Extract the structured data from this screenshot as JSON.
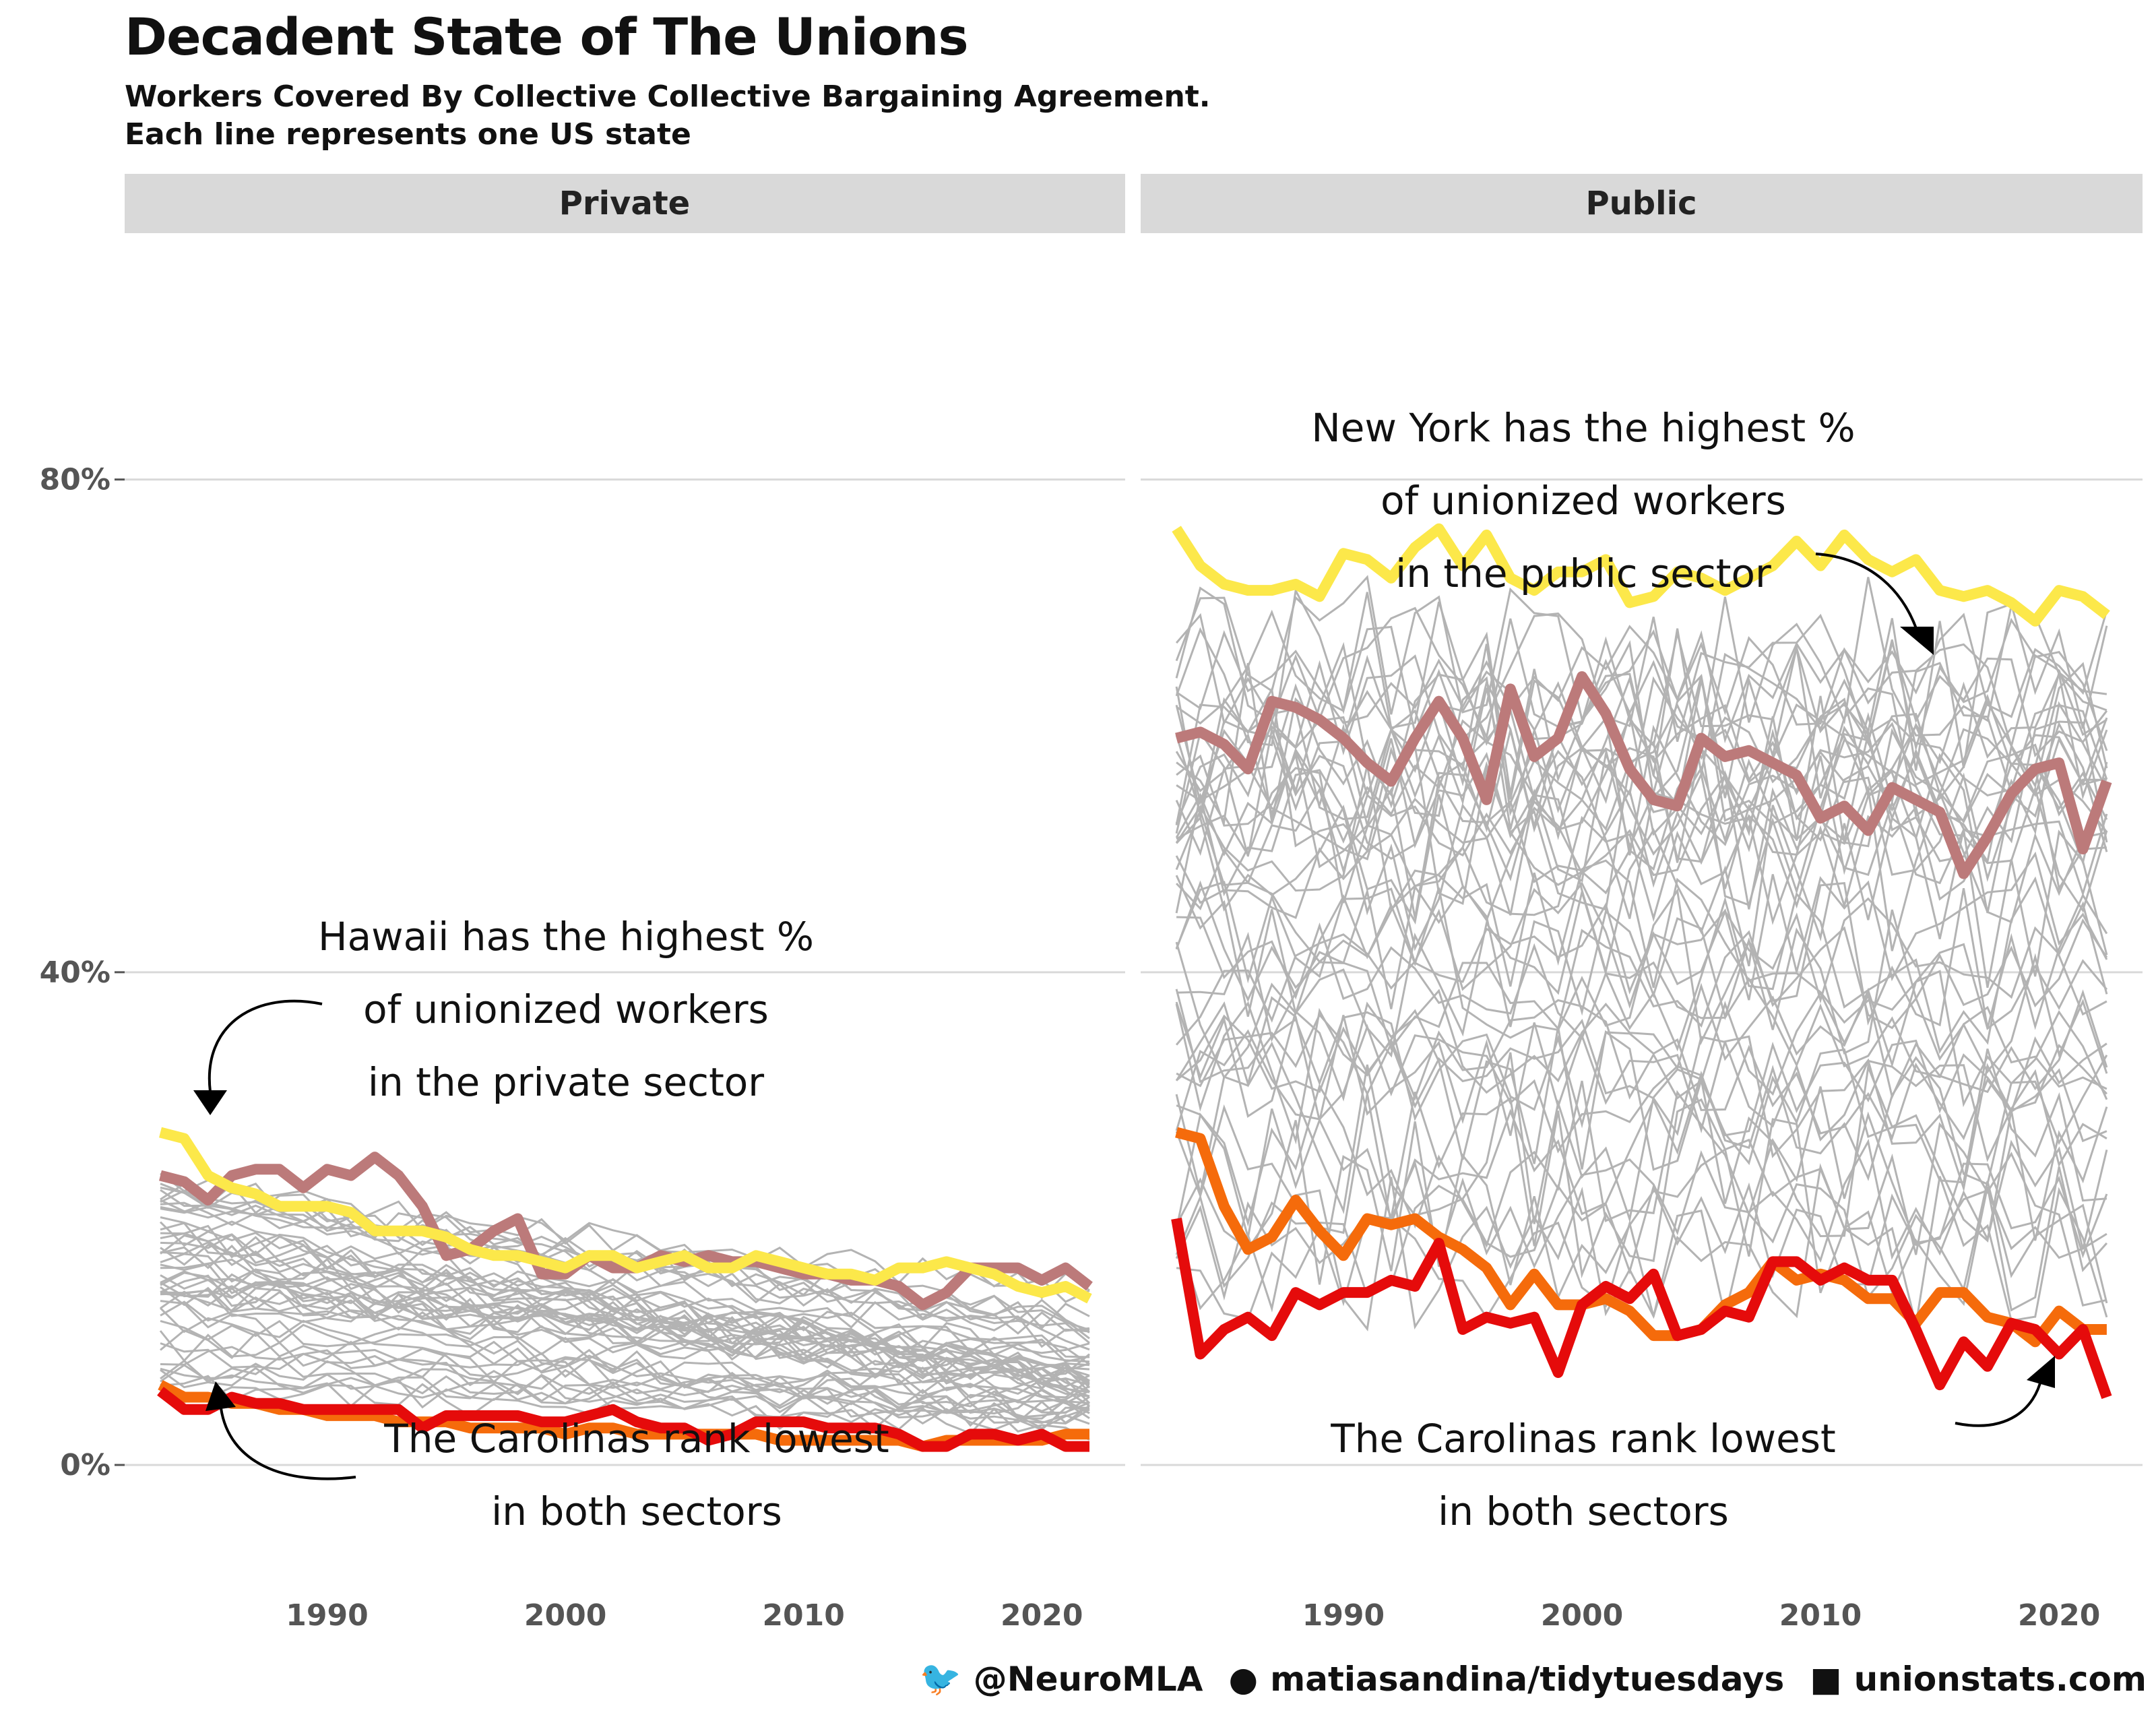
{
  "title": "Decadent State of The Unions",
  "subtitle_line1": "Workers Covered By Collective Collective Bargaining Agreement.",
  "subtitle_line2": "Each line represents one US state",
  "caption": {
    "twitter": "@NeuroMLA",
    "github": "matiasandina/tidytuesdays",
    "source": "unionstats.com"
  },
  "colors": {
    "background_states": "#b3b3b3",
    "hawaii": "#bc7a7a",
    "new_york": "#fce84a",
    "north_carolina": "#e50b0b",
    "south_carolina": "#f56b0b",
    "strip": "#d9d9d9",
    "grid": "#d9d9d9"
  },
  "chart_data": [
    {
      "type": "line",
      "facet": "Private",
      "x": [
        1983,
        1984,
        1985,
        1986,
        1987,
        1988,
        1989,
        1990,
        1991,
        1992,
        1993,
        1994,
        1995,
        1996,
        1997,
        1998,
        1999,
        2000,
        2001,
        2002,
        2003,
        2004,
        2005,
        2006,
        2007,
        2008,
        2009,
        2010,
        2011,
        2012,
        2013,
        2014,
        2015,
        2016,
        2017,
        2018,
        2019,
        2020,
        2021,
        2022
      ],
      "xticks": [
        1990,
        2000,
        2010,
        2020
      ],
      "yticks": [
        "0%",
        "40%",
        "80%"
      ],
      "yticks_values": [
        0,
        40,
        80
      ],
      "ylim": [
        -14,
        100
      ],
      "xlim": [
        1981.5,
        2023.5
      ],
      "series": [
        {
          "key": "hawaii",
          "values": [
            23.5,
            23,
            21.5,
            23.5,
            24,
            24,
            22.5,
            24,
            23.5,
            25,
            23.5,
            21,
            17,
            17.5,
            19,
            20,
            15.5,
            15.5,
            17,
            16,
            16,
            17,
            16.5,
            17,
            16.5,
            16.5,
            16,
            15.5,
            15.5,
            15,
            15,
            14.5,
            13,
            14,
            16,
            16,
            16,
            15,
            16,
            14.5
          ]
        },
        {
          "key": "new_york",
          "values": [
            27,
            26.5,
            23.5,
            22.5,
            22,
            21,
            21,
            21,
            20.5,
            19,
            19,
            19,
            18.5,
            17.5,
            17,
            17,
            16.5,
            16,
            17,
            17,
            16,
            16.5,
            17,
            16,
            16,
            17,
            16.5,
            16,
            15.5,
            15.5,
            15,
            16,
            16,
            16.5,
            16,
            15.5,
            14.5,
            14,
            14.5,
            13.5
          ]
        },
        {
          "key": "south_carolina",
          "values": [
            6.5,
            5.5,
            5.5,
            5,
            5,
            4.5,
            4.5,
            4,
            4,
            4,
            3.5,
            3.5,
            3.5,
            3,
            3,
            3,
            3,
            2.5,
            3,
            3,
            2.5,
            2.5,
            2.5,
            2.5,
            2.5,
            2.5,
            2,
            2,
            2,
            2,
            2,
            2,
            1.5,
            2,
            2,
            2,
            2,
            2,
            2.5,
            2.5
          ]
        },
        {
          "key": "north_carolina",
          "values": [
            6,
            4.5,
            4.5,
            5.5,
            5,
            5,
            4.5,
            4.5,
            4.5,
            4.5,
            4.5,
            3,
            4,
            4,
            4,
            4,
            3.5,
            3.5,
            4,
            4.5,
            3.5,
            3,
            3,
            2,
            2.5,
            3.5,
            3.5,
            3.5,
            3,
            3,
            3,
            2.5,
            1.5,
            1.5,
            2.5,
            2.5,
            2,
            2.5,
            1.5,
            1.5
          ]
        }
      ]
    },
    {
      "type": "line",
      "facet": "Public",
      "x": [
        1983,
        1984,
        1985,
        1986,
        1987,
        1988,
        1989,
        1990,
        1991,
        1992,
        1993,
        1994,
        1995,
        1996,
        1997,
        1998,
        1999,
        2000,
        2001,
        2002,
        2003,
        2004,
        2005,
        2006,
        2007,
        2008,
        2009,
        2010,
        2011,
        2012,
        2013,
        2014,
        2015,
        2016,
        2017,
        2018,
        2019,
        2020,
        2021,
        2022
      ],
      "xticks": [
        1990,
        2000,
        2010,
        2020
      ],
      "yticks": [
        "0%",
        "40%",
        "80%"
      ],
      "yticks_values": [
        0,
        40,
        80
      ],
      "ylim": [
        -14,
        100
      ],
      "xlim": [
        1981.5,
        2023.5
      ],
      "series": [
        {
          "key": "new_york",
          "values": [
            76,
            73,
            71.5,
            71,
            71,
            71.5,
            70.5,
            74,
            73.5,
            72,
            74.5,
            76,
            73,
            75.5,
            72,
            71,
            72.5,
            72.5,
            73.5,
            70,
            70.5,
            72.5,
            72,
            71,
            72,
            73,
            75,
            73,
            75.5,
            73.5,
            72.5,
            73.5,
            71,
            70.5,
            71,
            70,
            68.5,
            71,
            70.5,
            69
          ]
        },
        {
          "key": "hawaii",
          "values": [
            59,
            59.5,
            58.5,
            56.5,
            62,
            61.5,
            60.5,
            59,
            57,
            55.5,
            59,
            62,
            59,
            54,
            63,
            57.5,
            59,
            64,
            61,
            56.5,
            54,
            53.5,
            59,
            57.5,
            58,
            57,
            56,
            52.5,
            53.5,
            51.5,
            55,
            54,
            53,
            48,
            51,
            54.5,
            56.5,
            57,
            50,
            55.5
          ]
        },
        {
          "key": "south_carolina",
          "values": [
            27,
            26.5,
            21,
            17.5,
            18.5,
            21.5,
            19,
            17,
            20,
            19.5,
            20,
            18.5,
            17.5,
            16,
            13,
            15.5,
            13,
            13,
            13.5,
            12.5,
            10.5,
            10.5,
            11,
            13,
            14,
            16.5,
            15,
            15.5,
            15,
            13.5,
            13.5,
            11.5,
            14,
            14,
            12,
            11.5,
            10,
            12.5,
            11,
            11
          ]
        },
        {
          "key": "north_carolina",
          "values": [
            20,
            9,
            11,
            12,
            10.5,
            14,
            13,
            14,
            14,
            15,
            14.5,
            18,
            11,
            12,
            11.5,
            12,
            7.5,
            13,
            14.5,
            13.5,
            15.5,
            10.5,
            11,
            12.5,
            12,
            16.5,
            16.5,
            15,
            16,
            15,
            15,
            11,
            6.5,
            10,
            8,
            11.5,
            11,
            9,
            11,
            5.5
          ]
        }
      ]
    }
  ],
  "annotations": {
    "private_top": [
      "Hawaii has the highest %",
      "of unionized workers",
      "in the private sector"
    ],
    "private_bottom": [
      "The Carolinas rank lowest",
      "in both sectors"
    ],
    "public_top": [
      "New York has the highest %",
      "of unionized workers",
      "in the public sector"
    ],
    "public_bottom": [
      "The Carolinas rank lowest",
      "in both sectors"
    ]
  }
}
